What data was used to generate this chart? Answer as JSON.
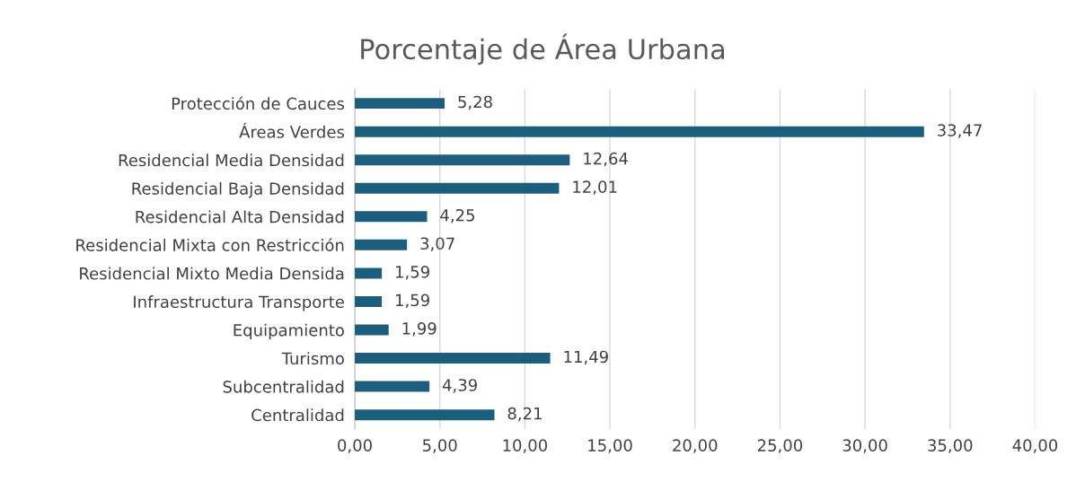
{
  "chart_data": {
    "type": "bar",
    "orientation": "horizontal",
    "title": "Porcentaje de Área Urbana",
    "categories": [
      "Protección de Cauces",
      "Áreas Verdes",
      "Residencial Media Densidad",
      "Residencial Baja Densidad",
      "Residencial Alta Densidad",
      "Residencial Mixta con Restricción",
      "Residencial Mixto Media Densida",
      "Infraestructura Transporte",
      "Equipamiento",
      "Turismo",
      "Subcentralidad",
      "Centralidad"
    ],
    "values": [
      5.28,
      33.47,
      12.64,
      12.01,
      4.25,
      3.07,
      1.59,
      1.59,
      1.99,
      11.49,
      4.39,
      8.21
    ],
    "value_labels": [
      "5,28",
      "33,47",
      "12,64",
      "12,01",
      "4,25",
      "3,07",
      "1,59",
      "1,59",
      "1,99",
      "11,49",
      "4,39",
      "8,21"
    ],
    "color": "#1b5e7e",
    "xlim": [
      0,
      40
    ],
    "xticks": [
      {
        "value": 0,
        "label": "0,00"
      },
      {
        "value": 5,
        "label": "5,00"
      },
      {
        "value": 10,
        "label": "10,00"
      },
      {
        "value": 15,
        "label": "15,00"
      },
      {
        "value": 20,
        "label": "20,00"
      },
      {
        "value": 25,
        "label": "25,00"
      },
      {
        "value": 30,
        "label": "30,00"
      },
      {
        "value": 35,
        "label": "35,00"
      },
      {
        "value": 40,
        "label": "40,00"
      }
    ],
    "grid": "x"
  }
}
